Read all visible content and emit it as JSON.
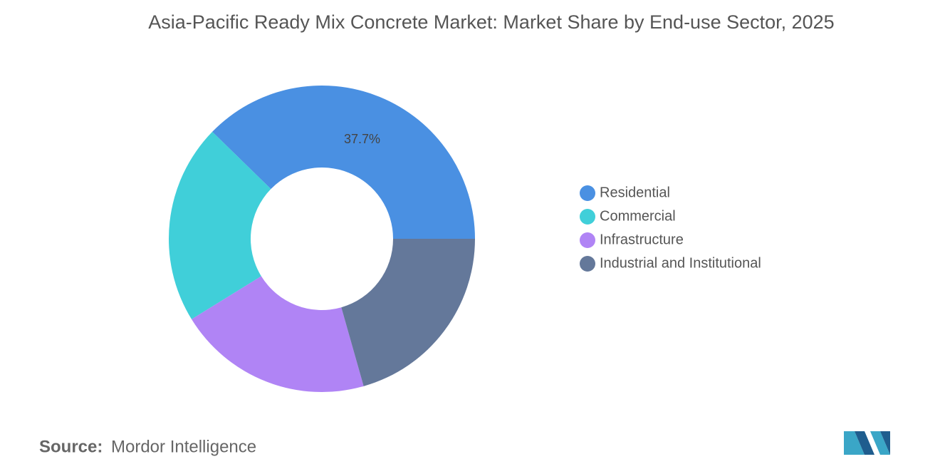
{
  "chart_data": {
    "type": "pie",
    "title": "Asia-Pacific Ready Mix Concrete Market: Market Share by End-use Sector, 2025",
    "categories": [
      "Residential",
      "Commercial",
      "Infrastructure",
      "Industrial and Institutional"
    ],
    "values": [
      37.7,
      21.1,
      20.6,
      20.6
    ],
    "value_labels": [
      "37.7%",
      null,
      null,
      null
    ],
    "colors": [
      "#4a90e2",
      "#40cfd9",
      "#b084f5",
      "#64789a"
    ],
    "legend": "right"
  },
  "source_label": "Source:",
  "source": "Mordor Intelligence"
}
